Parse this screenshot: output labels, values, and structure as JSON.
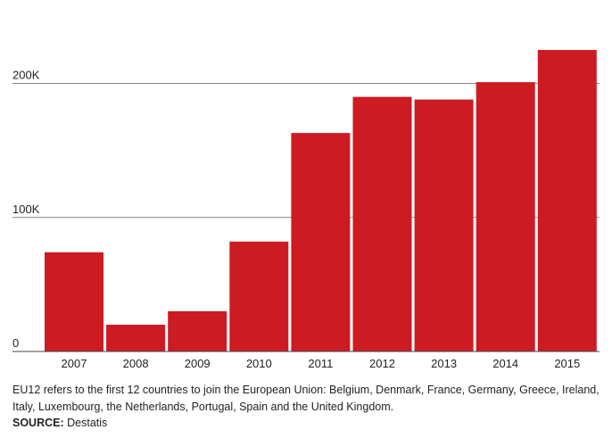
{
  "chart_data": {
    "type": "bar",
    "title": "",
    "xlabel": "",
    "ylabel": "",
    "categories": [
      "2007",
      "2008",
      "2009",
      "2010",
      "2011",
      "2012",
      "2013",
      "2014",
      "2015"
    ],
    "values": [
      74000,
      20000,
      30000,
      82000,
      163000,
      190000,
      188000,
      201000,
      225000
    ],
    "ylim": [
      0,
      225000
    ],
    "yticks": [
      0,
      100000,
      200000
    ],
    "ytick_labels": [
      "0",
      "100K",
      "200K"
    ],
    "grid": true,
    "bar_color": "#cc1b22"
  },
  "footnote": {
    "text": "EU12 refers to the first 12 countries to join the European Union: Belgium, Denmark, France, Germany, Greece, Ireland, Italy, Luxembourg, the Netherlands, Portugal, Spain and the United Kingdom.",
    "source_label": "SOURCE:",
    "source_value": "Destatis"
  }
}
